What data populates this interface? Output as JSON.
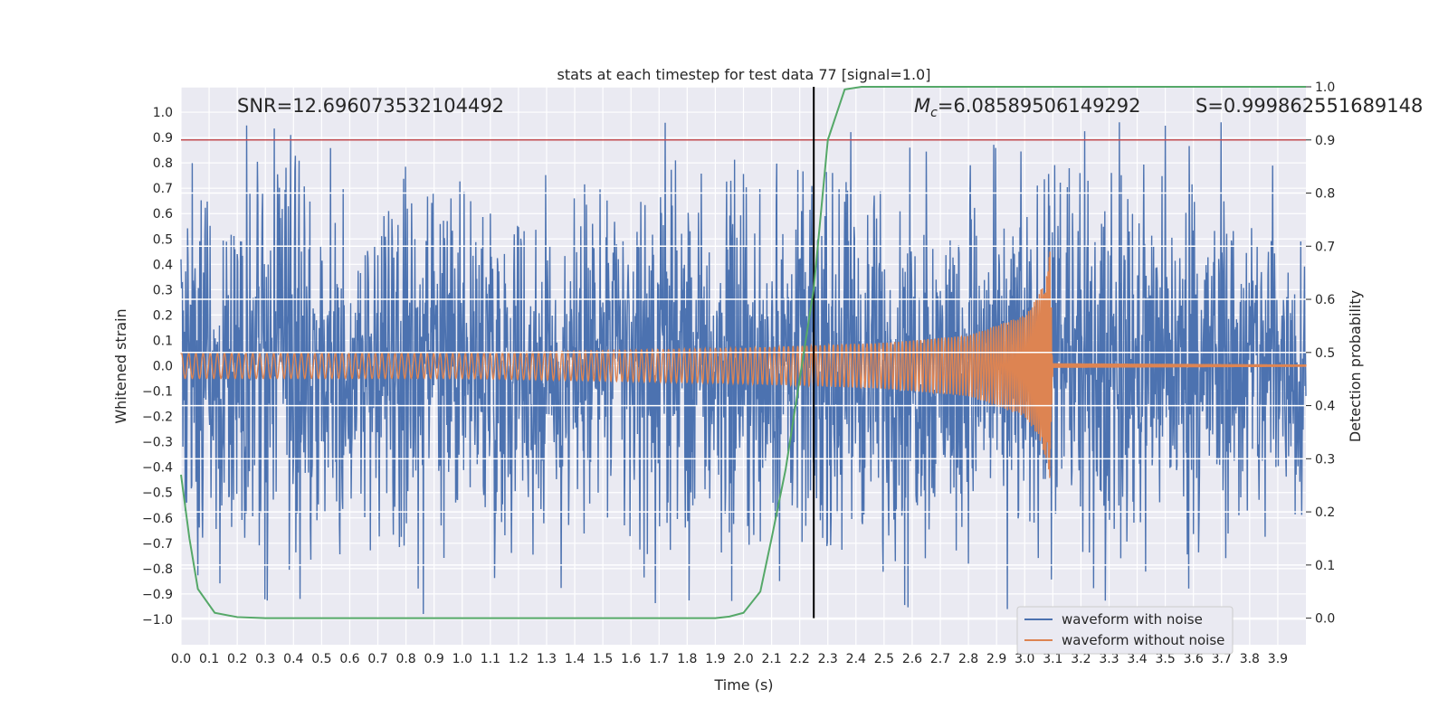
{
  "chart_data": {
    "type": "line",
    "title": "stats at each timestep for test data 77 [signal=1.0]",
    "xlabel": "Time (s)",
    "ylabel": "Whitened strain",
    "y2label": "Detection probability",
    "xlim": [
      0.0,
      4.0
    ],
    "ylim": [
      -1.1,
      1.1
    ],
    "y2lim": [
      -0.05,
      1.0
    ],
    "xticks": [
      "0.0",
      "0.1",
      "0.2",
      "0.3",
      "0.4",
      "0.5",
      "0.6",
      "0.7",
      "0.8",
      "0.9",
      "1.0",
      "1.1",
      "1.2",
      "1.3",
      "1.4",
      "1.5",
      "1.6",
      "1.7",
      "1.8",
      "1.9",
      "2.0",
      "2.1",
      "2.2",
      "2.3",
      "2.4",
      "2.5",
      "2.6",
      "2.7",
      "2.8",
      "2.9",
      "3.0",
      "3.1",
      "3.2",
      "3.3",
      "3.4",
      "3.5",
      "3.6",
      "3.7",
      "3.8",
      "3.9"
    ],
    "yticks": [
      "1.0",
      "0.9",
      "0.8",
      "0.7",
      "0.6",
      "0.5",
      "0.4",
      "0.3",
      "0.2",
      "0.1",
      "0.0",
      "−0.1",
      "−0.2",
      "−0.3",
      "−0.4",
      "−0.5",
      "−0.6",
      "−0.7",
      "−0.8",
      "−0.9",
      "−1.0"
    ],
    "y2ticks": [
      "1.0",
      "0.9",
      "0.8",
      "0.7",
      "0.6",
      "0.5",
      "0.4",
      "0.3",
      "0.2",
      "0.1",
      "0.0"
    ],
    "annotations": {
      "snr": "SNR=12.696073532104492",
      "mc_symbol": "M",
      "mc_sub": "c",
      "mc_value": "=6.08589506149292",
      "s": "S=0.999862551689148"
    },
    "threshold_y2": 0.9,
    "marker_time": 2.25,
    "merger_time": 3.09,
    "noise_envelope": [
      [
        0.0,
        0.62
      ],
      [
        0.3,
        0.7
      ],
      [
        0.6,
        0.6
      ],
      [
        0.9,
        0.62
      ],
      [
        1.2,
        0.58
      ],
      [
        1.5,
        0.62
      ],
      [
        1.8,
        0.6
      ],
      [
        2.1,
        0.6
      ],
      [
        2.4,
        0.62
      ],
      [
        2.7,
        0.6
      ],
      [
        3.0,
        0.62
      ],
      [
        3.3,
        0.58
      ],
      [
        3.6,
        0.6
      ],
      [
        4.0,
        0.58
      ]
    ],
    "signal_envelope": [
      [
        0.0,
        0.05
      ],
      [
        1.0,
        0.05
      ],
      [
        2.0,
        0.07
      ],
      [
        2.5,
        0.09
      ],
      [
        2.8,
        0.12
      ],
      [
        3.0,
        0.2
      ],
      [
        3.05,
        0.28
      ],
      [
        3.08,
        0.38
      ],
      [
        3.09,
        0.45
      ],
      [
        3.1,
        0.01
      ],
      [
        4.0,
        0.005
      ]
    ],
    "detection_probability": [
      [
        0.0,
        0.27
      ],
      [
        0.03,
        0.15
      ],
      [
        0.06,
        0.055
      ],
      [
        0.12,
        0.01
      ],
      [
        0.2,
        0.002
      ],
      [
        0.3,
        0.0
      ],
      [
        1.0,
        0.0
      ],
      [
        1.9,
        0.0
      ],
      [
        1.95,
        0.003
      ],
      [
        2.0,
        0.01
      ],
      [
        2.06,
        0.05
      ],
      [
        2.1,
        0.15
      ],
      [
        2.15,
        0.28
      ],
      [
        2.2,
        0.45
      ],
      [
        2.25,
        0.62
      ],
      [
        2.3,
        0.9
      ],
      [
        2.36,
        0.995
      ],
      [
        2.42,
        1.0
      ],
      [
        4.0,
        1.0
      ]
    ],
    "legend": {
      "position": "lower-right",
      "entries": [
        {
          "label": "waveform with noise",
          "color": "#4c72b0"
        },
        {
          "label": "waveform without noise",
          "color": "#dd8452"
        }
      ]
    },
    "colors": {
      "noise": "#4c72b0",
      "signal": "#dd8452",
      "probability": "#55a868",
      "threshold": "#c44e52",
      "marker": "#000000",
      "axes_bg": "#eaeaf2",
      "grid": "#ffffff"
    }
  }
}
